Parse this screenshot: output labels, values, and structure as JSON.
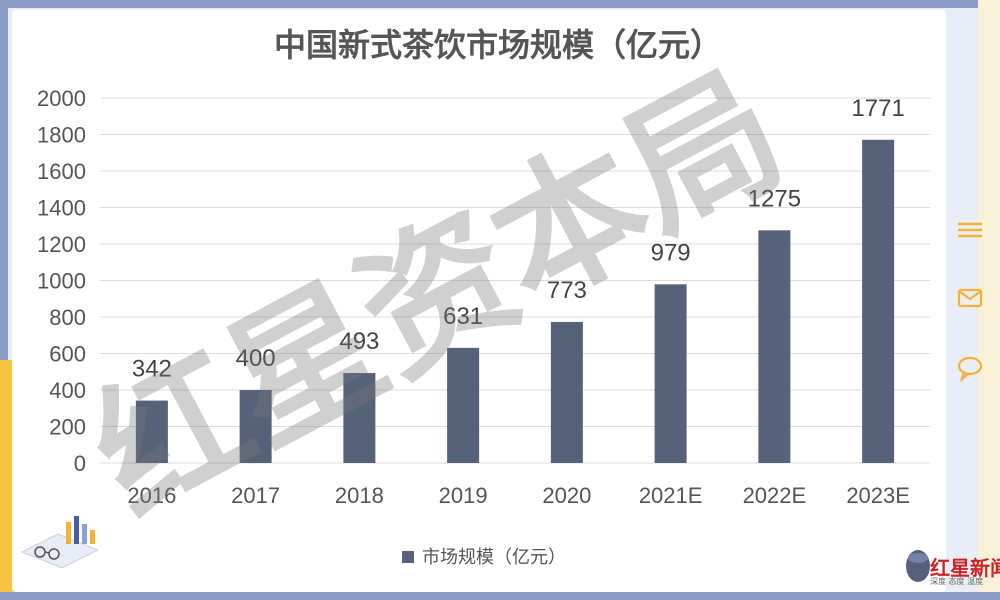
{
  "chart_data": {
    "type": "bar",
    "title": "中国新式茶饮市场规模（亿元）",
    "categories": [
      "2016",
      "2017",
      "2018",
      "2019",
      "2020",
      "2021E",
      "2022E",
      "2023E"
    ],
    "series": [
      {
        "name": "市场规模（亿元）",
        "values": [
          342,
          400,
          493,
          631,
          773,
          979,
          1275,
          1771
        ]
      }
    ],
    "ylim": [
      0,
      2000
    ],
    "yticks": [
      "0",
      "200",
      "400",
      "600",
      "800",
      "1000",
      "1200",
      "1400",
      "1600",
      "1800",
      "2000"
    ],
    "grid": true,
    "legend": "bottom",
    "data_labels": true,
    "bar_color": "#566278",
    "watermark": "红星资本局"
  },
  "logo": {
    "text": "红星新闻",
    "subtitle": "深度 态度 温度",
    "color": "#c9242b"
  },
  "icons": [
    "menu-icon",
    "mail-icon",
    "comment-icon"
  ]
}
